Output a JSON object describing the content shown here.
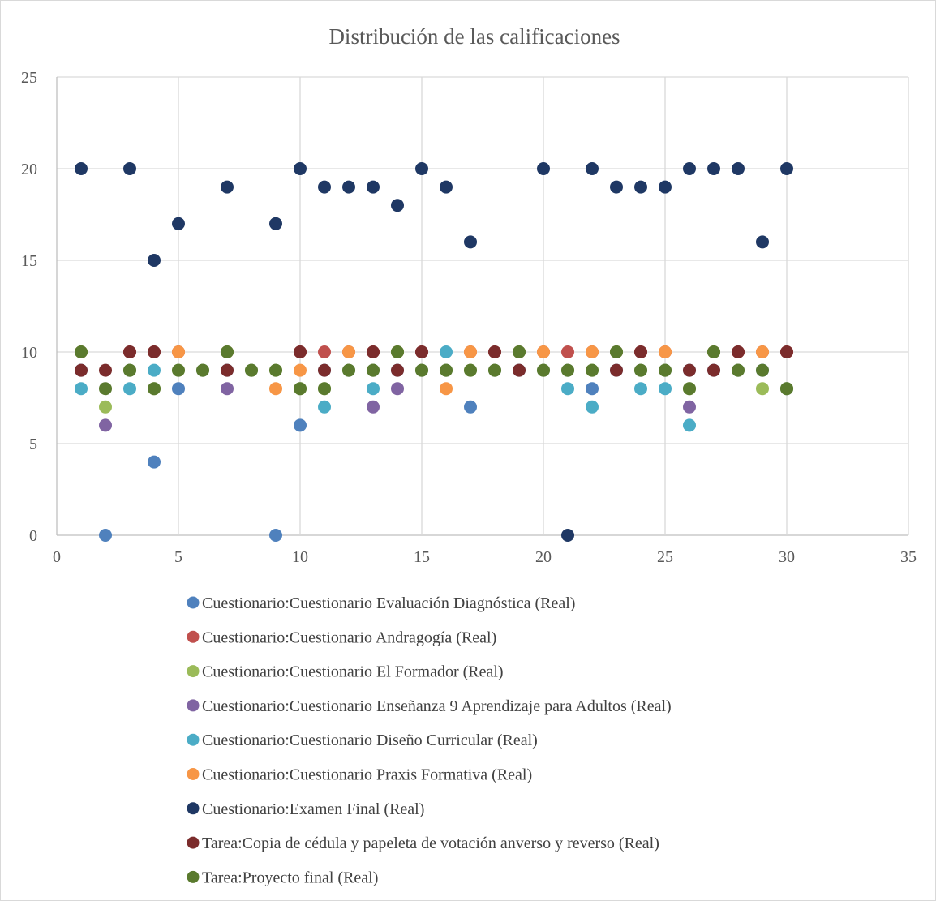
{
  "chart_data": {
    "type": "scatter",
    "title": "Distribución de las calificaciones",
    "xlabel": "",
    "ylabel": "",
    "xlim": [
      0,
      35
    ],
    "ylim": [
      0,
      25
    ],
    "xticks": [
      0,
      5,
      10,
      15,
      20,
      25,
      30,
      35
    ],
    "yticks": [
      0,
      5,
      10,
      15,
      20,
      25
    ],
    "grid": true,
    "legend_position": "bottom",
    "series": [
      {
        "name": "Cuestionario:Cuestionario Evaluación Diagnóstica (Real)",
        "color": "#4f81bd",
        "points": [
          [
            1,
            9
          ],
          [
            2,
            0
          ],
          [
            3,
            9
          ],
          [
            4,
            4
          ],
          [
            5,
            8
          ],
          [
            6,
            9
          ],
          [
            7,
            9
          ],
          [
            8,
            9
          ],
          [
            9,
            0
          ],
          [
            10,
            6
          ],
          [
            11,
            9
          ],
          [
            12,
            9
          ],
          [
            13,
            9
          ],
          [
            14,
            9
          ],
          [
            15,
            9
          ],
          [
            16,
            9
          ],
          [
            17,
            7
          ],
          [
            18,
            9
          ],
          [
            19,
            9
          ],
          [
            20,
            9
          ],
          [
            21,
            9
          ],
          [
            22,
            8
          ],
          [
            23,
            9
          ],
          [
            24,
            9
          ],
          [
            25,
            9
          ],
          [
            26,
            9
          ],
          [
            27,
            9
          ],
          [
            28,
            9
          ],
          [
            29,
            9
          ],
          [
            30,
            8
          ]
        ]
      },
      {
        "name": "Cuestionario:Cuestionario Andragogía (Real)",
        "color": "#c0504d",
        "points": [
          [
            1,
            10
          ],
          [
            3,
            10
          ],
          [
            4,
            10
          ],
          [
            5,
            10
          ],
          [
            7,
            10
          ],
          [
            10,
            10
          ],
          [
            11,
            10
          ],
          [
            12,
            10
          ],
          [
            13,
            10
          ],
          [
            14,
            10
          ],
          [
            15,
            10
          ],
          [
            17,
            10
          ],
          [
            18,
            10
          ],
          [
            19,
            10
          ],
          [
            20,
            10
          ],
          [
            21,
            10
          ],
          [
            22,
            10
          ],
          [
            23,
            10
          ],
          [
            24,
            10
          ],
          [
            25,
            10
          ],
          [
            27,
            10
          ],
          [
            28,
            10
          ],
          [
            29,
            10
          ],
          [
            30,
            10
          ]
        ]
      },
      {
        "name": "Cuestionario:Cuestionario El Formador (Real)",
        "color": "#9bbb59",
        "points": [
          [
            1,
            10
          ],
          [
            2,
            7
          ],
          [
            3,
            9
          ],
          [
            4,
            8
          ],
          [
            5,
            9
          ],
          [
            6,
            9
          ],
          [
            7,
            10
          ],
          [
            8,
            9
          ],
          [
            9,
            9
          ],
          [
            10,
            8
          ],
          [
            11,
            8
          ],
          [
            12,
            9
          ],
          [
            13,
            9
          ],
          [
            14,
            10
          ],
          [
            15,
            9
          ],
          [
            16,
            9
          ],
          [
            17,
            9
          ],
          [
            18,
            9
          ],
          [
            19,
            10
          ],
          [
            20,
            9
          ],
          [
            21,
            9
          ],
          [
            22,
            9
          ],
          [
            23,
            10
          ],
          [
            24,
            9
          ],
          [
            25,
            9
          ],
          [
            26,
            8
          ],
          [
            27,
            10
          ],
          [
            28,
            9
          ],
          [
            29,
            8
          ],
          [
            30,
            8
          ]
        ]
      },
      {
        "name": "Cuestionario:Cuestionario Enseñanza 9 Aprendizaje para Adultos (Real)",
        "color": "#8064a2",
        "points": [
          [
            2,
            6
          ],
          [
            7,
            8
          ],
          [
            13,
            7
          ],
          [
            14,
            8
          ],
          [
            26,
            7
          ]
        ]
      },
      {
        "name": "Cuestionario:Cuestionario Diseño Curricular (Real)",
        "color": "#4bacc6",
        "points": [
          [
            1,
            8
          ],
          [
            3,
            8
          ],
          [
            4,
            9
          ],
          [
            11,
            7
          ],
          [
            13,
            8
          ],
          [
            16,
            10
          ],
          [
            21,
            8
          ],
          [
            22,
            7
          ],
          [
            24,
            8
          ],
          [
            25,
            8
          ],
          [
            26,
            6
          ]
        ]
      },
      {
        "name": "Cuestionario:Cuestionario Praxis Formativa (Real)",
        "color": "#f79646",
        "points": [
          [
            5,
            10
          ],
          [
            9,
            8
          ],
          [
            10,
            9
          ],
          [
            12,
            10
          ],
          [
            16,
            8
          ],
          [
            17,
            10
          ],
          [
            20,
            10
          ],
          [
            22,
            10
          ],
          [
            25,
            10
          ],
          [
            29,
            10
          ]
        ]
      },
      {
        "name": "Cuestionario:Examen Final (Real)",
        "color": "#1f3864",
        "points": [
          [
            1,
            20
          ],
          [
            3,
            20
          ],
          [
            4,
            15
          ],
          [
            5,
            17
          ],
          [
            7,
            19
          ],
          [
            9,
            17
          ],
          [
            10,
            20
          ],
          [
            11,
            19
          ],
          [
            12,
            19
          ],
          [
            13,
            19
          ],
          [
            14,
            18
          ],
          [
            15,
            20
          ],
          [
            16,
            19
          ],
          [
            17,
            16
          ],
          [
            20,
            20
          ],
          [
            21,
            0
          ],
          [
            22,
            20
          ],
          [
            23,
            19
          ],
          [
            24,
            19
          ],
          [
            25,
            19
          ],
          [
            26,
            20
          ],
          [
            27,
            20
          ],
          [
            28,
            20
          ],
          [
            29,
            16
          ],
          [
            30,
            20
          ]
        ]
      },
      {
        "name": "Tarea:Copia de cédula y papeleta de votación anverso y reverso (Real)",
        "color": "#7b2c2c",
        "points": [
          [
            1,
            9
          ],
          [
            2,
            9
          ],
          [
            3,
            10
          ],
          [
            4,
            10
          ],
          [
            7,
            9
          ],
          [
            10,
            10
          ],
          [
            11,
            9
          ],
          [
            13,
            10
          ],
          [
            14,
            9
          ],
          [
            15,
            10
          ],
          [
            18,
            10
          ],
          [
            19,
            9
          ],
          [
            23,
            9
          ],
          [
            24,
            10
          ],
          [
            26,
            9
          ],
          [
            27,
            9
          ],
          [
            28,
            10
          ],
          [
            30,
            10
          ]
        ]
      },
      {
        "name": "Tarea:Proyecto final (Real)",
        "color": "#5a7a2e",
        "points": [
          [
            1,
            10
          ],
          [
            2,
            8
          ],
          [
            3,
            9
          ],
          [
            4,
            8
          ],
          [
            5,
            9
          ],
          [
            6,
            9
          ],
          [
            7,
            10
          ],
          [
            8,
            9
          ],
          [
            9,
            9
          ],
          [
            10,
            8
          ],
          [
            11,
            8
          ],
          [
            12,
            9
          ],
          [
            13,
            9
          ],
          [
            14,
            10
          ],
          [
            15,
            9
          ],
          [
            16,
            9
          ],
          [
            17,
            9
          ],
          [
            18,
            9
          ],
          [
            19,
            10
          ],
          [
            20,
            9
          ],
          [
            21,
            9
          ],
          [
            22,
            9
          ],
          [
            23,
            10
          ],
          [
            24,
            9
          ],
          [
            25,
            9
          ],
          [
            26,
            8
          ],
          [
            27,
            10
          ],
          [
            28,
            9
          ],
          [
            29,
            9
          ],
          [
            30,
            8
          ]
        ]
      }
    ]
  }
}
